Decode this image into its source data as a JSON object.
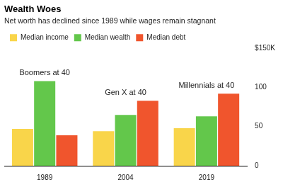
{
  "chart_data": {
    "type": "bar",
    "title": "Wealth Woes",
    "subtitle": "Net worth has declined since 1989 while wages remain stagnant",
    "categories": [
      "1989",
      "2004",
      "2019"
    ],
    "series": [
      {
        "name": "Median income",
        "color": "#f9d54a",
        "values": [
          47,
          44,
          48
        ]
      },
      {
        "name": "Median wealth",
        "color": "#63c74b",
        "values": [
          108,
          65,
          63
        ]
      },
      {
        "name": "Median debt",
        "color": "#f0552d",
        "values": [
          39,
          83,
          92
        ]
      }
    ],
    "annotations": [
      {
        "text": "Boomers at 40",
        "category": "1989"
      },
      {
        "text": "Gen X at 40",
        "category": "2004"
      },
      {
        "text": "Millennials at 40",
        "category": "2019"
      }
    ],
    "ylim": [
      0,
      150
    ],
    "yticks": [
      0,
      50,
      100,
      {
        "value": 150,
        "label": "$150K"
      }
    ],
    "grid": false,
    "legend": "top-left"
  }
}
